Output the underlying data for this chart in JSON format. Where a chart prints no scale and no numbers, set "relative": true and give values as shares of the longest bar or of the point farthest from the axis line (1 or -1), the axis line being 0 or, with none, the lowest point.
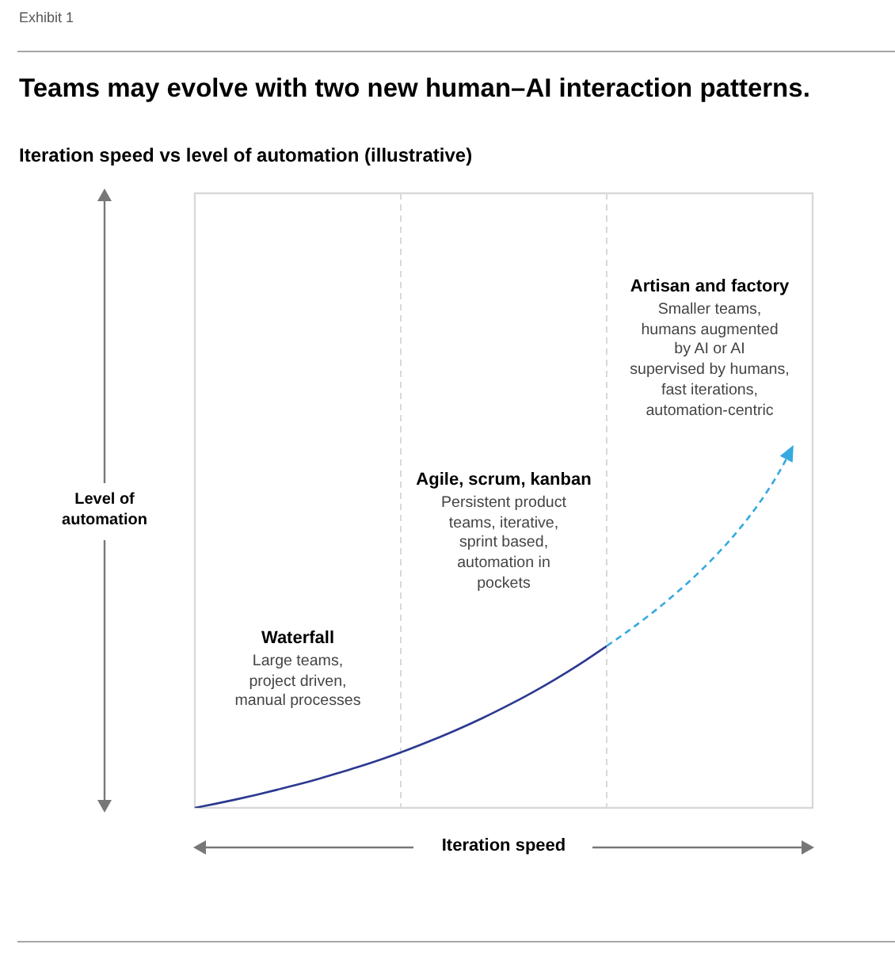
{
  "chart_data": {
    "type": "line",
    "title": "Teams may evolve with two new human–AI interaction patterns.",
    "subtitle": "Iteration speed vs level of automation (illustrative)",
    "xlabel": "Iteration speed",
    "annotations": [
      "Exhibit 1",
      "Level of automation",
      "Waterfall",
      "Large teams,\nproject driven,\nmanual processes",
      "Agile, scrum, kanban",
      "Persistent product\nteams, iterative,\nsprint based,\nautomation in\npockets",
      "Artisan and factory",
      "Smaller teams,\nhumans augmented\nby AI or AI\nsupervised by humans,\nfast iterations,\nautomation-centric"
    ],
    "categories": [
      null,
      null,
      null,
      null,
      null,
      null,
      null,
      null,
      null,
      null,
      null,
      null,
      null,
      null,
      null,
      null,
      null,
      null,
      null,
      null,
      null,
      null,
      null,
      null,
      null,
      null,
      null,
      null,
      null,
      null,
      null
    ],
    "relative": true,
    "series": [
      {
        "color": "#2b3990",
        "line_style": "solid",
        "values": [
          0,
          0.025,
          0.052,
          0.081,
          0.112,
          0.144,
          0.179,
          0.217,
          0.256,
          0.298,
          0.343,
          0.392,
          0.443,
          0.498,
          0.557,
          0.62,
          0.686,
          0.757,
          0.833,
          0.914,
          1,
          null,
          null,
          null,
          null,
          null,
          null,
          null,
          null,
          null,
          null
        ]
      }
    ],
    "legend": false,
    "marker": "none",
    "tick_labels": false
  }
}
